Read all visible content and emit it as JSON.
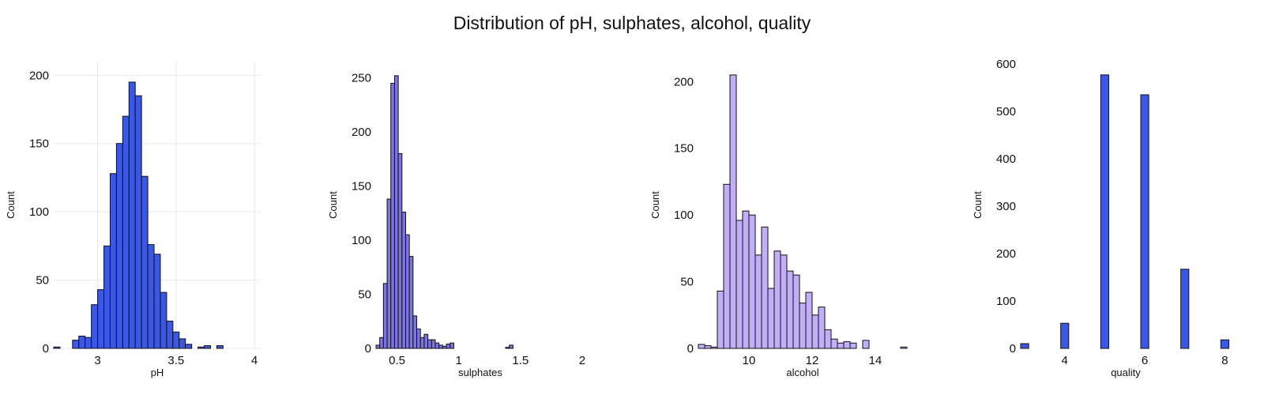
{
  "title": "Distribution of pH, sulphates, alcohol, quality",
  "chart_data": [
    {
      "type": "bar",
      "xlabel": "pH",
      "ylabel": "Count",
      "color": "#3a57e6",
      "grid": true,
      "xlim": [
        2.72,
        4.04
      ],
      "ylim": [
        0,
        210
      ],
      "xticks": [
        3,
        3.5,
        4
      ],
      "yticks": [
        0,
        50,
        100,
        150,
        200
      ],
      "bin_edges": [
        2.72,
        2.76,
        2.8,
        2.84,
        2.88,
        2.92,
        2.96,
        3.0,
        3.04,
        3.08,
        3.12,
        3.16,
        3.2,
        3.24,
        3.28,
        3.32,
        3.36,
        3.4,
        3.44,
        3.48,
        3.52,
        3.56,
        3.6,
        3.64,
        3.68,
        3.72,
        3.76,
        3.8,
        3.84,
        3.88,
        3.92,
        3.96,
        4.0,
        4.04
      ],
      "values": [
        1,
        0,
        0,
        6,
        9,
        8,
        32,
        43,
        75,
        128,
        150,
        170,
        195,
        185,
        126,
        76,
        69,
        41,
        20,
        12,
        7,
        3,
        0,
        1,
        2,
        0,
        2,
        0,
        0,
        0,
        0,
        0,
        0
      ]
    },
    {
      "type": "bar",
      "xlabel": "sulphates",
      "ylabel": "Count",
      "color": "#7b74e1",
      "grid": false,
      "xlim": [
        0.33,
        2.02
      ],
      "ylim": [
        0,
        265
      ],
      "xticks": [
        0.5,
        1,
        1.5,
        2
      ],
      "yticks": [
        0,
        50,
        100,
        150,
        200,
        250
      ],
      "bin_edges": [
        0.33,
        0.36,
        0.39,
        0.42,
        0.45,
        0.48,
        0.51,
        0.54,
        0.57,
        0.6,
        0.63,
        0.66,
        0.69,
        0.72,
        0.75,
        0.78,
        0.81,
        0.84,
        0.87,
        0.9,
        0.93,
        0.96,
        0.99,
        1.02,
        1.05,
        1.08,
        1.11,
        1.14,
        1.17,
        1.2,
        1.23,
        1.26,
        1.29,
        1.32,
        1.35,
        1.38,
        1.41,
        1.44,
        1.47,
        1.5,
        1.53,
        1.56,
        1.59,
        1.62,
        1.65,
        1.68,
        1.71,
        1.74,
        1.77,
        1.8,
        1.83,
        1.86,
        1.89,
        1.92,
        1.95,
        1.98,
        2.01
      ],
      "values": [
        3,
        10,
        60,
        138,
        245,
        252,
        180,
        126,
        105,
        85,
        30,
        18,
        10,
        13,
        8,
        8,
        5,
        3,
        2,
        4,
        5,
        0,
        0,
        0,
        0,
        0,
        0,
        0,
        0,
        0,
        0,
        0,
        0,
        0,
        0,
        1,
        3,
        0,
        0,
        0,
        0,
        0,
        0,
        0,
        0,
        0,
        0,
        0,
        0,
        0,
        0,
        0,
        0,
        0,
        0,
        0
      ]
    },
    {
      "type": "bar",
      "xlabel": "alcohol",
      "ylabel": "Count",
      "color": "#c3aef9",
      "grid": false,
      "xlim": [
        8.4,
        15.0
      ],
      "ylim": [
        0,
        215
      ],
      "xticks": [
        10,
        12,
        14
      ],
      "yticks": [
        0,
        50,
        100,
        150,
        200
      ],
      "bin_edges": [
        8.4,
        8.6,
        8.8,
        9.0,
        9.2,
        9.4,
        9.6,
        9.8,
        10.0,
        10.2,
        10.4,
        10.6,
        10.8,
        11.0,
        11.2,
        11.4,
        11.6,
        11.8,
        12.0,
        12.2,
        12.4,
        12.6,
        12.8,
        13.0,
        13.2,
        13.4,
        13.6,
        13.8,
        14.0,
        14.2,
        14.4,
        14.6,
        14.8,
        15.0
      ],
      "values": [
        3,
        2,
        1,
        43,
        123,
        205,
        96,
        103,
        100,
        70,
        91,
        45,
        73,
        70,
        58,
        55,
        34,
        42,
        25,
        31,
        14,
        7,
        4,
        5,
        4,
        0,
        6,
        0,
        0,
        0,
        0,
        0,
        1
      ]
    },
    {
      "type": "bar",
      "xlabel": "quality",
      "ylabel": "Count",
      "color": "#3a57e6",
      "grid": false,
      "xlim": [
        2.9,
        8.15
      ],
      "ylim": [
        0,
        605
      ],
      "xticks": [
        4,
        6,
        8
      ],
      "yticks": [
        0,
        100,
        200,
        300,
        400,
        500,
        600
      ],
      "bin_edges": [
        2.9,
        3.1,
        3.9,
        4.1,
        4.9,
        5.1,
        5.9,
        6.1,
        6.9,
        7.1,
        7.9,
        8.1
      ],
      "values": [
        10,
        0,
        53,
        0,
        577,
        0,
        535,
        0,
        167,
        0,
        18
      ]
    }
  ]
}
